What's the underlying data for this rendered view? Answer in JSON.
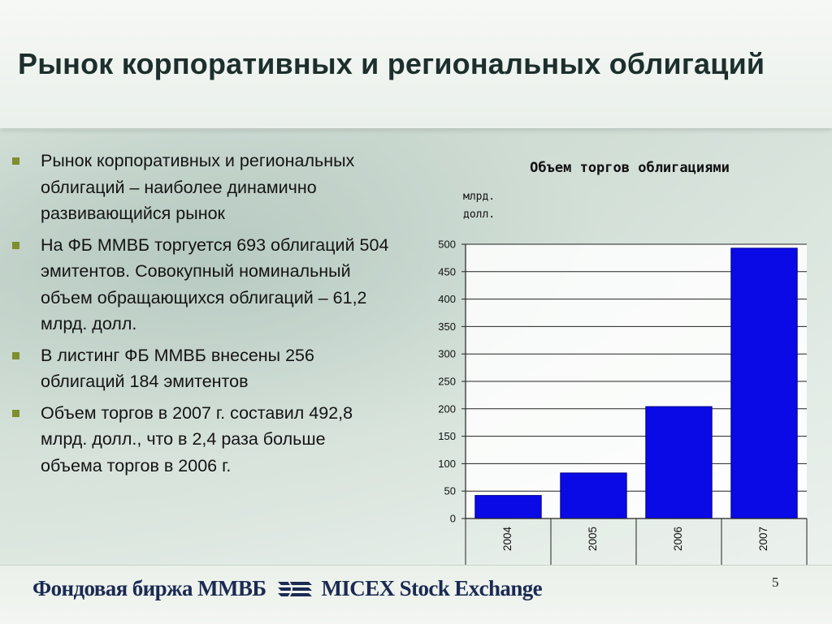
{
  "slide": {
    "title": "Рынок корпоративных и региональных облигаций",
    "bullets": [
      "Рынок корпоративных и региональных облигаций – наиболее динамично развивающийся рынок",
      "На ФБ ММВБ торгуется 693 облигаций 504 эмитентов. Совокупный номинальный объем обращающихся облигаций – 61,2 млрд. долл.",
      "В листинг ФБ ММВБ внесены 256 облигаций 184 эмитентов",
      "Объем торгов в 2007 г. составил 492,8 млрд. долл., что в 2,4 раза больше объема торгов в 2006 г."
    ],
    "page_number": "5"
  },
  "footer": {
    "brand_ru": "Фондовая биржа ММВБ",
    "brand_en": "MICEX Stock Exchange",
    "logo_icon": "micex-logo-icon",
    "text_color": "#1b2a52"
  },
  "chart_data": {
    "type": "bar",
    "title": "Объем торгов облигациями",
    "ylabel": "млрд. долл.",
    "ylabel_lines": [
      "млрд.",
      "долл."
    ],
    "xlabel": "",
    "categories": [
      "2004",
      "2005",
      "2006",
      "2007"
    ],
    "values": [
      42,
      83,
      204,
      492.8
    ],
    "ylim": [
      0,
      500
    ],
    "yticks": [
      0,
      50,
      100,
      150,
      200,
      250,
      300,
      350,
      400,
      450,
      500
    ],
    "grid": true,
    "legend": "none",
    "bar_color": "#0a0ae6",
    "bar_edge_color": "#00008a"
  }
}
